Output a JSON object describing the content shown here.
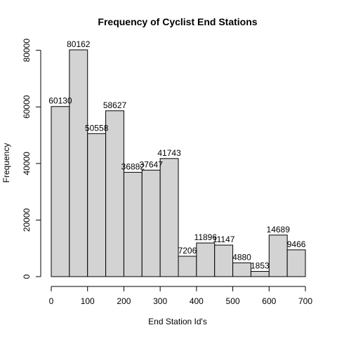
{
  "chart_data": {
    "type": "bar",
    "title": "Frequency of Cyclist End Stations",
    "xlabel": "End Station Id's",
    "ylabel": "Frequency",
    "bin_edges": [
      0,
      50,
      100,
      150,
      200,
      250,
      300,
      350,
      400,
      450,
      500,
      550,
      600,
      650,
      700
    ],
    "values": [
      60130,
      80162,
      50558,
      58627,
      36882,
      37647,
      41743,
      7206,
      11896,
      11147,
      4880,
      1853,
      14689,
      9466
    ],
    "data_labels": [
      "60130",
      "80162",
      "50558",
      "58627",
      "36882",
      "37647",
      "41743",
      "7206",
      "11896",
      "11147",
      "4880",
      "1853",
      "14689",
      "9466"
    ],
    "xlim": [
      0,
      700
    ],
    "ylim": [
      0,
      80162
    ],
    "x_ticks": [
      0,
      100,
      200,
      300,
      400,
      500,
      600,
      700
    ],
    "x_tick_labels": [
      "0",
      "100",
      "200",
      "300",
      "400",
      "500",
      "600",
      "700"
    ],
    "y_ticks": [
      0,
      20000,
      40000,
      60000,
      80000
    ],
    "y_tick_labels": [
      "0",
      "20000",
      "40000",
      "60000",
      "80000"
    ],
    "grid": false,
    "bar_color": "#D3D3D3",
    "edge_color": "#000000"
  }
}
